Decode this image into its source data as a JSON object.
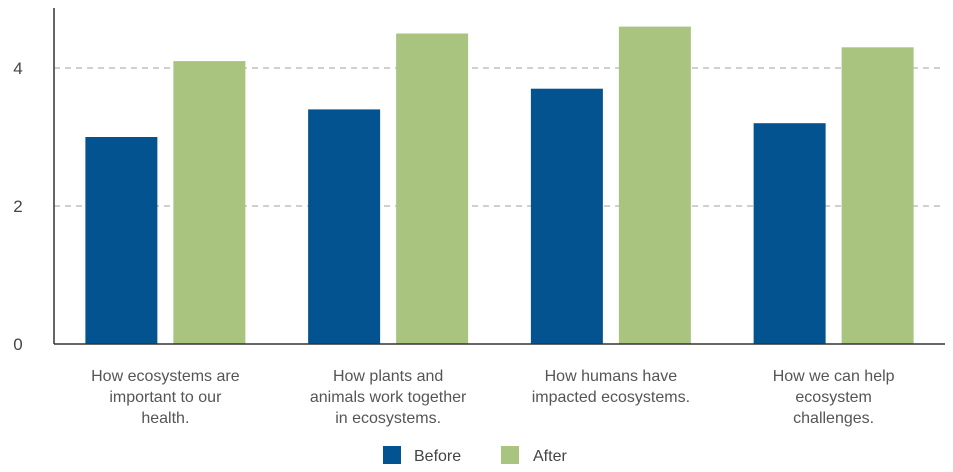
{
  "colors": {
    "before": "#02538f",
    "after": "#a8c47f",
    "axis": "#333333",
    "grid": "#b3b3b3"
  },
  "chart_data": {
    "type": "bar",
    "categories": [
      [
        "How ecosystems are",
        "important to our",
        "health."
      ],
      [
        "How plants and",
        "animals work together",
        "in ecosystems."
      ],
      [
        "How humans have",
        "impacted ecosystems."
      ],
      [
        "How we can help",
        "ecosystem",
        "challenges."
      ]
    ],
    "series": [
      {
        "name": "Before",
        "values": [
          3.0,
          3.4,
          3.7,
          3.2
        ]
      },
      {
        "name": "After",
        "values": [
          4.1,
          4.5,
          4.6,
          4.3
        ]
      }
    ],
    "yticks": [
      "0",
      "2",
      "4"
    ],
    "ylim": [
      0,
      4.9
    ],
    "grid": true,
    "legend": "bottom-center"
  }
}
